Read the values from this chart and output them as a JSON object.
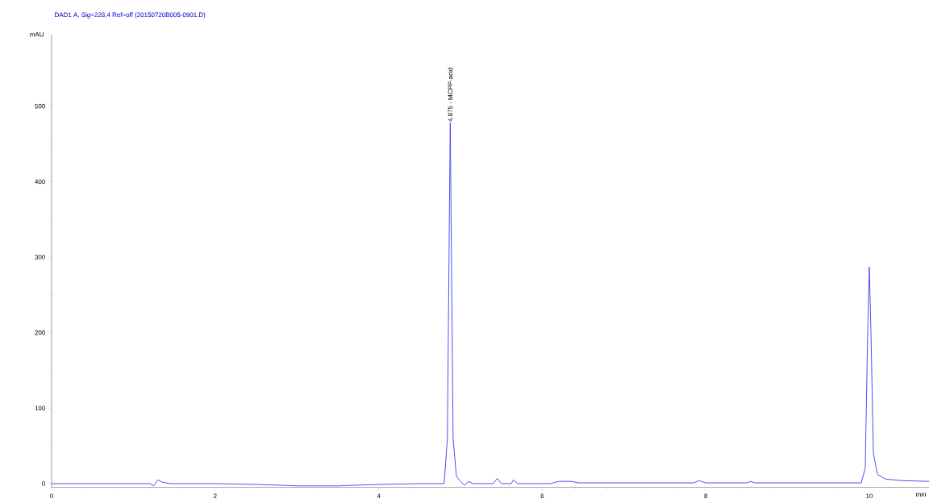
{
  "chart_data": {
    "type": "line",
    "title": "DAD1 A, Sig=228,4 Ref=off (20150720B005-0901.D)",
    "xlabel": "min",
    "ylabel": "mAU",
    "x": [
      0,
      0.5,
      1.0,
      1.2,
      1.25,
      1.3,
      1.35,
      1.45,
      2.0,
      2.5,
      3.0,
      3.5,
      4.0,
      4.5,
      4.8,
      4.84,
      4.86,
      4.875,
      4.89,
      4.91,
      4.95,
      5.0,
      5.05,
      5.1,
      5.15,
      5.4,
      5.45,
      5.5,
      5.62,
      5.65,
      5.7,
      6.1,
      6.2,
      6.35,
      6.45,
      7.85,
      7.92,
      8.0,
      8.5,
      8.55,
      8.6,
      9.9,
      9.95,
      9.98,
      10.0,
      10.02,
      10.05,
      10.1,
      10.2,
      10.4,
      10.73
    ],
    "values": [
      0,
      0,
      0,
      0,
      -3,
      5,
      2,
      0,
      0,
      -1,
      -3,
      -3,
      -1,
      0,
      0,
      60,
      300,
      478,
      300,
      60,
      10,
      3,
      -2,
      3,
      0,
      0,
      7,
      0,
      0,
      5,
      0,
      0,
      3,
      3,
      1,
      1,
      4,
      1,
      1,
      3,
      1,
      1,
      20,
      200,
      287,
      200,
      40,
      12,
      6,
      4,
      3
    ],
    "color": "#3c3cf0",
    "xlim": [
      0,
      10.73
    ],
    "ylim": [
      -5,
      595
    ],
    "xticks": [
      0,
      2,
      4,
      6,
      8,
      10
    ],
    "yticks": [
      0,
      100,
      200,
      300,
      400,
      500
    ],
    "annotations": [
      {
        "text": "4.875 - MCPP-acid",
        "x": 4.875,
        "y": 478
      }
    ]
  }
}
